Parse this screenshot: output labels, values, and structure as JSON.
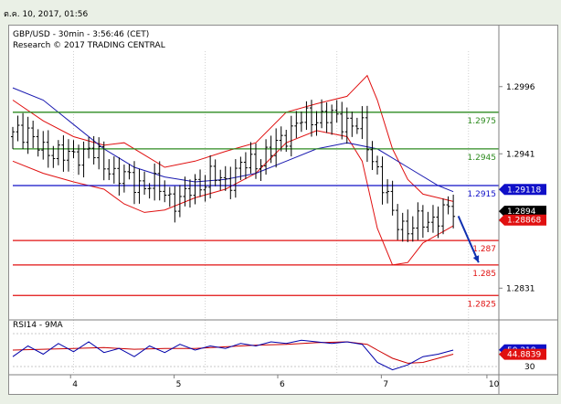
{
  "datestamp": "ต.ค. 10, 2017, 01:56",
  "header": {
    "line1": "GBP/USD - 30min - 3:56:46 (CET)",
    "line2": "Research © 2017 TRADING CENTRAL"
  },
  "rsi_label": "RSI14 - 9MA",
  "colors": {
    "level_green": "#2e8b20",
    "level_blue": "#1010c8",
    "level_red": "#e01010",
    "bands": "#e01010",
    "ma": "#1a1ab0",
    "candle": "#000000",
    "rsi": "#0000aa",
    "rsi_ma": "#cc0000",
    "arrow": "#1030b0"
  },
  "chart_data": {
    "type": "candlestick",
    "instrument": "GBP/USD",
    "timeframe": "30min",
    "x_labels": [
      "4",
      "5",
      "6",
      "7",
      "10"
    ],
    "y_ticks": [
      "1.2996",
      "1.2941",
      "1.2886",
      "1.2831"
    ],
    "ylim": [
      1.2808,
      1.3025
    ],
    "levels": [
      {
        "label": "1.2975",
        "value": 1.2975,
        "color": "green"
      },
      {
        "label": "1.2945",
        "value": 1.2945,
        "color": "green"
      },
      {
        "label": "1.2915",
        "value": 1.2915,
        "color": "blue"
      },
      {
        "label": "1.287",
        "value": 1.287,
        "color": "red"
      },
      {
        "label": "1.285",
        "value": 1.285,
        "color": "red"
      },
      {
        "label": "1.2825",
        "value": 1.2825,
        "color": "red"
      }
    ],
    "price_tags": [
      {
        "label": "1.29118",
        "value": 1.29118,
        "style": "blue"
      },
      {
        "label": "1.2894",
        "value": 1.2894,
        "style": "black"
      },
      {
        "label": "1.28868",
        "value": 1.28868,
        "style": "red"
      }
    ],
    "close_path": [
      [
        0,
        1.2955
      ],
      [
        3,
        1.2962
      ],
      [
        6,
        1.294
      ],
      [
        9,
        1.2945
      ],
      [
        12,
        1.2935
      ],
      [
        15,
        1.2948
      ],
      [
        18,
        1.293
      ],
      [
        21,
        1.2925
      ],
      [
        24,
        1.2915
      ],
      [
        27,
        1.2918
      ],
      [
        30,
        1.2908
      ],
      [
        33,
        1.2902
      ],
      [
        36,
        1.2915
      ],
      [
        39,
        1.2922
      ],
      [
        42,
        1.2918
      ],
      [
        45,
        1.293
      ],
      [
        48,
        1.2935
      ],
      [
        51,
        1.2942
      ],
      [
        54,
        1.2958
      ],
      [
        57,
        1.2968
      ],
      [
        60,
        1.2972
      ],
      [
        63,
        1.297
      ],
      [
        66,
        1.2968
      ],
      [
        69,
        1.296
      ],
      [
        72,
        1.2928
      ],
      [
        75,
        1.289
      ],
      [
        78,
        1.288
      ],
      [
        81,
        1.2885
      ],
      [
        84,
        1.289
      ],
      [
        87,
        1.2895
      ]
    ],
    "bb_upper": [
      [
        0,
        1.2985
      ],
      [
        6,
        1.2968
      ],
      [
        12,
        1.2955
      ],
      [
        18,
        1.2948
      ],
      [
        22,
        1.295
      ],
      [
        26,
        1.294
      ],
      [
        30,
        1.293
      ],
      [
        36,
        1.2935
      ],
      [
        42,
        1.2943
      ],
      [
        48,
        1.295
      ],
      [
        54,
        1.2975
      ],
      [
        60,
        1.2982
      ],
      [
        66,
        1.2988
      ],
      [
        70,
        1.3005
      ],
      [
        72,
        1.2985
      ],
      [
        75,
        1.2945
      ],
      [
        78,
        1.292
      ],
      [
        81,
        1.2908
      ],
      [
        84,
        1.2905
      ],
      [
        87,
        1.2902
      ]
    ],
    "bb_lower": [
      [
        0,
        1.2935
      ],
      [
        6,
        1.2925
      ],
      [
        12,
        1.2918
      ],
      [
        18,
        1.2912
      ],
      [
        22,
        1.29
      ],
      [
        26,
        1.2893
      ],
      [
        30,
        1.2895
      ],
      [
        36,
        1.2905
      ],
      [
        42,
        1.2912
      ],
      [
        48,
        1.2925
      ],
      [
        54,
        1.295
      ],
      [
        60,
        1.296
      ],
      [
        66,
        1.2955
      ],
      [
        69,
        1.2935
      ],
      [
        72,
        1.288
      ],
      [
        75,
        1.285
      ],
      [
        78,
        1.2852
      ],
      [
        81,
        1.2868
      ],
      [
        84,
        1.2875
      ],
      [
        87,
        1.2882
      ]
    ],
    "ma": [
      [
        0,
        1.2995
      ],
      [
        6,
        1.2985
      ],
      [
        12,
        1.2965
      ],
      [
        18,
        1.2945
      ],
      [
        24,
        1.293
      ],
      [
        30,
        1.2922
      ],
      [
        36,
        1.2918
      ],
      [
        42,
        1.292
      ],
      [
        48,
        1.2925
      ],
      [
        54,
        1.2935
      ],
      [
        60,
        1.2945
      ],
      [
        66,
        1.295
      ],
      [
        72,
        1.2945
      ],
      [
        78,
        1.293
      ],
      [
        84,
        1.2915
      ],
      [
        87,
        1.291
      ]
    ],
    "forecast_arrow": {
      "from": [
        88,
        1.289
      ],
      "to": [
        92,
        1.2852
      ]
    },
    "rsi": {
      "label": "RSI14 - 9MA",
      "ylim": [
        20,
        80
      ],
      "y_ticks": [
        "30"
      ],
      "value_tags": [
        {
          "label": "50.218",
          "value": 50.218,
          "style": "blue"
        },
        {
          "label": "44.8839",
          "value": 44.8839,
          "style": "red"
        }
      ],
      "rsi_path": [
        [
          0,
          42
        ],
        [
          3,
          55
        ],
        [
          6,
          45
        ],
        [
          9,
          58
        ],
        [
          12,
          48
        ],
        [
          15,
          60
        ],
        [
          18,
          47
        ],
        [
          21,
          52
        ],
        [
          24,
          42
        ],
        [
          27,
          55
        ],
        [
          30,
          47
        ],
        [
          33,
          57
        ],
        [
          36,
          50
        ],
        [
          39,
          55
        ],
        [
          42,
          52
        ],
        [
          45,
          58
        ],
        [
          48,
          55
        ],
        [
          51,
          60
        ],
        [
          54,
          58
        ],
        [
          57,
          62
        ],
        [
          60,
          60
        ],
        [
          63,
          58
        ],
        [
          66,
          60
        ],
        [
          69,
          57
        ],
        [
          72,
          35
        ],
        [
          75,
          26
        ],
        [
          78,
          32
        ],
        [
          81,
          42
        ],
        [
          84,
          45
        ],
        [
          87,
          50
        ]
      ],
      "ma_path": [
        [
          0,
          50
        ],
        [
          6,
          51
        ],
        [
          12,
          52
        ],
        [
          18,
          53
        ],
        [
          24,
          51
        ],
        [
          30,
          52
        ],
        [
          36,
          52
        ],
        [
          42,
          54
        ],
        [
          48,
          56
        ],
        [
          54,
          57
        ],
        [
          60,
          59
        ],
        [
          66,
          60
        ],
        [
          70,
          57
        ],
        [
          72,
          50
        ],
        [
          75,
          40
        ],
        [
          78,
          34
        ],
        [
          81,
          35
        ],
        [
          84,
          40
        ],
        [
          87,
          45
        ]
      ]
    }
  }
}
